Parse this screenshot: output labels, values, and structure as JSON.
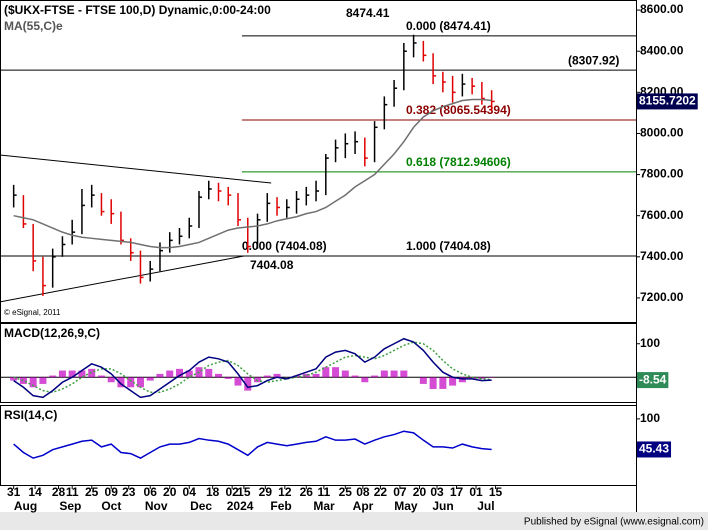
{
  "chart_data": [
    {
      "type": "ohlc",
      "title": "($UKX-FTSE - FTSE 100,D) Dynamic,0:00-24:00",
      "indicator_label": "MA(55,C)e",
      "copyright": "© eSignal, 2011",
      "publisher": "Published by eSignal (www.esignal.com)",
      "x": [
        0,
        5,
        10,
        15,
        20,
        25,
        30,
        35,
        40,
        45,
        50,
        55,
        60,
        65,
        70,
        75,
        80,
        85,
        90,
        95,
        100,
        105,
        110,
        115,
        120,
        125,
        130,
        135,
        140,
        145,
        150,
        155,
        160,
        165,
        170,
        175,
        180,
        185,
        190,
        195,
        200,
        205,
        210,
        215,
        220,
        225,
        230,
        235,
        240,
        245
      ],
      "high": [
        7750,
        7700,
        7560,
        7400,
        7440,
        7500,
        7580,
        7730,
        7750,
        7710,
        7680,
        7620,
        7490,
        7430,
        7380,
        7470,
        7520,
        7540,
        7590,
        7720,
        7770,
        7760,
        7740,
        7710,
        7590,
        7610,
        7710,
        7690,
        7680,
        7720,
        7740,
        7770,
        7900,
        7970,
        8000,
        8010,
        7980,
        8060,
        8180,
        8260,
        8440,
        8480,
        8450,
        8390,
        8300,
        8280,
        8290,
        8270,
        8250,
        8210
      ],
      "low": [
        7640,
        7540,
        7330,
        7210,
        7250,
        7400,
        7460,
        7510,
        7640,
        7600,
        7560,
        7460,
        7380,
        7270,
        7280,
        7330,
        7420,
        7460,
        7490,
        7540,
        7680,
        7670,
        7650,
        7550,
        7420,
        7440,
        7570,
        7600,
        7590,
        7610,
        7650,
        7670,
        7700,
        7860,
        7880,
        7900,
        7840,
        7860,
        8020,
        8130,
        8210,
        8370,
        8350,
        8240,
        8200,
        8150,
        8180,
        8190,
        8140,
        8110
      ],
      "close": [
        7700,
        7560,
        7380,
        7260,
        7400,
        7460,
        7520,
        7650,
        7700,
        7620,
        7610,
        7480,
        7420,
        7300,
        7340,
        7430,
        7480,
        7500,
        7550,
        7690,
        7730,
        7720,
        7700,
        7580,
        7450,
        7580,
        7660,
        7640,
        7640,
        7680,
        7700,
        7720,
        7880,
        7930,
        7950,
        7960,
        7880,
        8030,
        8140,
        8220,
        8400,
        8440,
        8380,
        8280,
        8250,
        8200,
        8240,
        8230,
        8170,
        8155.72
      ],
      "up_color": "#000000",
      "down_color": "#e00000",
      "ma": {
        "color": "#707070",
        "values": [
          7600,
          7590,
          7580,
          7560,
          7540,
          7520,
          7505,
          7495,
          7490,
          7485,
          7480,
          7475,
          7470,
          7460,
          7450,
          7445,
          7445,
          7450,
          7460,
          7470,
          7490,
          7510,
          7530,
          7540,
          7545,
          7550,
          7560,
          7575,
          7585,
          7595,
          7610,
          7620,
          7640,
          7670,
          7700,
          7740,
          7770,
          7800,
          7850,
          7900,
          7960,
          8030,
          8080,
          8110,
          8130,
          8145,
          8160,
          8165,
          8165,
          8160
        ]
      },
      "xlim": [
        -7,
        319
      ],
      "ylim": [
        7083,
        8649
      ],
      "yticks": [
        {
          "value": 8600,
          "label": "8600.00"
        },
        {
          "value": 8400,
          "label": "8400.00"
        },
        {
          "value": 8200,
          "label": "8200.00"
        },
        {
          "value": 8000,
          "label": "8000.00"
        },
        {
          "value": 7800,
          "label": "7800.00"
        },
        {
          "value": 7600,
          "label": "7600.00"
        },
        {
          "value": 7400,
          "label": "7400.00"
        },
        {
          "value": 7200,
          "label": "7200.00"
        }
      ],
      "xticks": [
        {
          "value": 0,
          "label": "31"
        },
        {
          "value": 11,
          "label": "14"
        },
        {
          "value": 23,
          "label": "28"
        },
        {
          "value": 30,
          "label": "11"
        },
        {
          "value": 40,
          "label": "25"
        },
        {
          "value": 50,
          "label": "09"
        },
        {
          "value": 59,
          "label": "23"
        },
        {
          "value": 70,
          "label": "06"
        },
        {
          "value": 80,
          "label": "20"
        },
        {
          "value": 90,
          "label": "04"
        },
        {
          "value": 102,
          "label": "18"
        },
        {
          "value": 112,
          "label": "02"
        },
        {
          "value": 118,
          "label": "15"
        },
        {
          "value": 129,
          "label": "29"
        },
        {
          "value": 139,
          "label": "12"
        },
        {
          "value": 150,
          "label": "26"
        },
        {
          "value": 159,
          "label": "11"
        },
        {
          "value": 170,
          "label": "25"
        },
        {
          "value": 179,
          "label": "08"
        },
        {
          "value": 188,
          "label": "22"
        },
        {
          "value": 198,
          "label": "07"
        },
        {
          "value": 208,
          "label": "20"
        },
        {
          "value": 217,
          "label": "03"
        },
        {
          "value": 227,
          "label": "17"
        },
        {
          "value": 237,
          "label": "01"
        },
        {
          "value": 247,
          "label": "15"
        }
      ],
      "month_ticks": [
        {
          "value": 3,
          "label": "Aug"
        },
        {
          "value": 26,
          "label": "Sep"
        },
        {
          "value": 47,
          "label": "Oct"
        },
        {
          "value": 70,
          "label": "Nov"
        },
        {
          "value": 93,
          "label": "Dec"
        },
        {
          "value": 113,
          "label": "2024"
        },
        {
          "value": 134,
          "label": "Feb"
        },
        {
          "value": 156,
          "label": "Mar"
        },
        {
          "value": 176,
          "label": "Apr"
        },
        {
          "value": 198,
          "label": "May"
        },
        {
          "value": 217,
          "label": "Jun"
        },
        {
          "value": 239,
          "label": "Jul"
        }
      ],
      "fib_levels": [
        {
          "value": 8474.41,
          "label": "0.000 (8474.41)",
          "color": "#000000",
          "start": 117
        },
        {
          "value": 8307.92,
          "label": "(8307.92)",
          "color": "#000000",
          "start": -7
        },
        {
          "value": 8065.54394,
          "label": "0.382 (8065.54394)",
          "color": "#8b0000",
          "start": 117
        },
        {
          "value": 7812.94606,
          "label": "0.618 (7812.94606)",
          "color": "#008000",
          "start": 117
        },
        {
          "value": 7404.08,
          "label": "1.000 (7404.08)",
          "color": "#000000",
          "start": -7
        }
      ],
      "low_fib_label": "0.000 (7404.08)",
      "peak_label": 8474.41,
      "trough_label": 7404.08,
      "trendlines": [
        {
          "x": [
            -7,
            132
          ],
          "y": [
            7895,
            7759
          ]
        },
        {
          "x": [
            -7,
            118
          ],
          "y": [
            7181,
            7404.08
          ]
        }
      ],
      "last_price": 8155.7202,
      "last_color": "#000050"
    },
    {
      "type": "macd",
      "title": "MACD(12,26,9,C)",
      "x": [
        0,
        5,
        10,
        15,
        20,
        25,
        30,
        35,
        40,
        45,
        50,
        55,
        60,
        65,
        70,
        75,
        80,
        85,
        90,
        95,
        100,
        105,
        110,
        115,
        120,
        125,
        130,
        135,
        140,
        145,
        150,
        155,
        160,
        165,
        170,
        175,
        180,
        185,
        190,
        195,
        200,
        205,
        210,
        215,
        220,
        225,
        230,
        235,
        240,
        245
      ],
      "series": [
        {
          "name": "MACD",
          "color": "#000080",
          "values": [
            -10,
            -30,
            -55,
            -60,
            -40,
            -15,
            0,
            20,
            40,
            30,
            10,
            -20,
            -40,
            -60,
            -55,
            -35,
            -15,
            5,
            20,
            45,
            60,
            55,
            45,
            10,
            -30,
            -25,
            -10,
            0,
            -5,
            5,
            15,
            25,
            60,
            75,
            80,
            70,
            45,
            60,
            85,
            100,
            115,
            105,
            80,
            45,
            15,
            0,
            -5,
            -5,
            -10,
            -8.54
          ]
        },
        {
          "name": "Signal",
          "color": "#40a040",
          "values": [
            0,
            -10,
            -25,
            -40,
            -45,
            -35,
            -20,
            0,
            15,
            25,
            25,
            10,
            -10,
            -30,
            -45,
            -45,
            -35,
            -20,
            0,
            15,
            35,
            45,
            50,
            35,
            10,
            -10,
            -15,
            -10,
            -5,
            0,
            5,
            15,
            30,
            45,
            60,
            65,
            60,
            55,
            65,
            80,
            95,
            105,
            100,
            80,
            50,
            25,
            10,
            0,
            -5,
            -7
          ]
        },
        {
          "name": "Histogram",
          "color": "#c000c0",
          "values": [
            -10,
            -20,
            -30,
            -20,
            5,
            20,
            20,
            20,
            25,
            5,
            -15,
            -30,
            -30,
            -30,
            -10,
            10,
            20,
            25,
            20,
            30,
            25,
            10,
            -5,
            -25,
            -40,
            -15,
            5,
            10,
            0,
            5,
            10,
            10,
            30,
            30,
            20,
            5,
            -15,
            5,
            20,
            20,
            20,
            0,
            -20,
            -35,
            -35,
            -25,
            -15,
            -5,
            -5,
            -1.54
          ]
        }
      ],
      "ylim": [
        -74,
        159
      ],
      "yticks": [
        100
      ],
      "last_value": -8.54,
      "last_color": "#2e8b57"
    },
    {
      "type": "rsi",
      "title": "RSI(14,C)",
      "x": [
        0,
        5,
        10,
        15,
        20,
        25,
        30,
        35,
        40,
        45,
        50,
        55,
        60,
        65,
        70,
        75,
        80,
        85,
        90,
        95,
        100,
        105,
        110,
        115,
        120,
        125,
        130,
        135,
        140,
        145,
        150,
        155,
        160,
        165,
        170,
        175,
        180,
        185,
        190,
        195,
        200,
        205,
        210,
        215,
        220,
        225,
        230,
        235,
        240,
        245
      ],
      "color": "#0000cc",
      "values": [
        55,
        40,
        30,
        35,
        45,
        50,
        55,
        60,
        62,
        50,
        55,
        40,
        38,
        30,
        40,
        50,
        55,
        55,
        58,
        65,
        62,
        60,
        55,
        45,
        35,
        50,
        58,
        55,
        52,
        55,
        58,
        60,
        68,
        62,
        62,
        64,
        55,
        62,
        68,
        72,
        78,
        75,
        62,
        50,
        50,
        48,
        55,
        50,
        47,
        45.43
      ],
      "ylim": [
        -18,
        123
      ],
      "yticks": [
        100
      ],
      "last_value": 45.43,
      "last_color": "#000080"
    }
  ]
}
